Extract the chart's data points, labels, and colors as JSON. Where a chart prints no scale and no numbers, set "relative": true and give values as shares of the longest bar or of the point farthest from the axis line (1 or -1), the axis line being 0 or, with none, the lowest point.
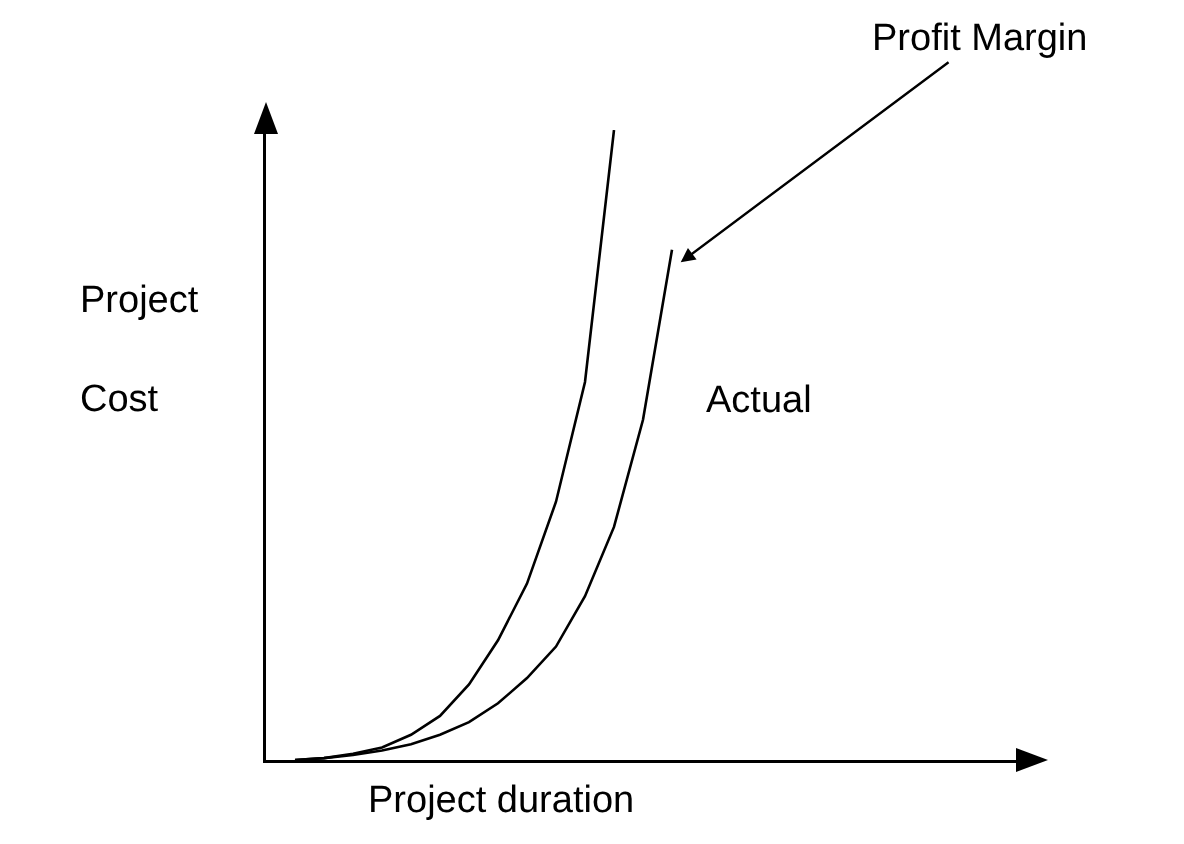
{
  "chart_data": {
    "type": "line",
    "relative": true,
    "xlabel": "Project duration",
    "ylabel": "Project\nCost",
    "legend": false,
    "grid": false,
    "marker": "none",
    "line_style": "solid",
    "categories": [
      null,
      null,
      null,
      null,
      null,
      null,
      null,
      null,
      null,
      null,
      null,
      null,
      null,
      null,
      null,
      null,
      null,
      null,
      null,
      null,
      null,
      null,
      null,
      null,
      null,
      null,
      null
    ],
    "series": [
      {
        "name": "Profit Margin",
        "color": "#000000",
        "values": [
          null,
          0,
          0.003,
          0.01,
          0.02,
          0.04,
          0.07,
          0.12,
          0.19,
          0.28,
          0.41,
          0.6,
          1,
          null,
          null,
          null,
          null,
          null,
          null,
          null,
          null,
          null,
          null,
          null,
          null,
          null,
          null
        ]
      },
      {
        "name": "Actual",
        "color": "#000000",
        "values": [
          null,
          0,
          0.003,
          0.008,
          0.015,
          0.025,
          0.04,
          0.06,
          0.09,
          0.13,
          0.18,
          0.26,
          0.37,
          0.54,
          0.81,
          null,
          null,
          null,
          null,
          null,
          null,
          null,
          null,
          null,
          null,
          null,
          null
        ]
      }
    ]
  }
}
